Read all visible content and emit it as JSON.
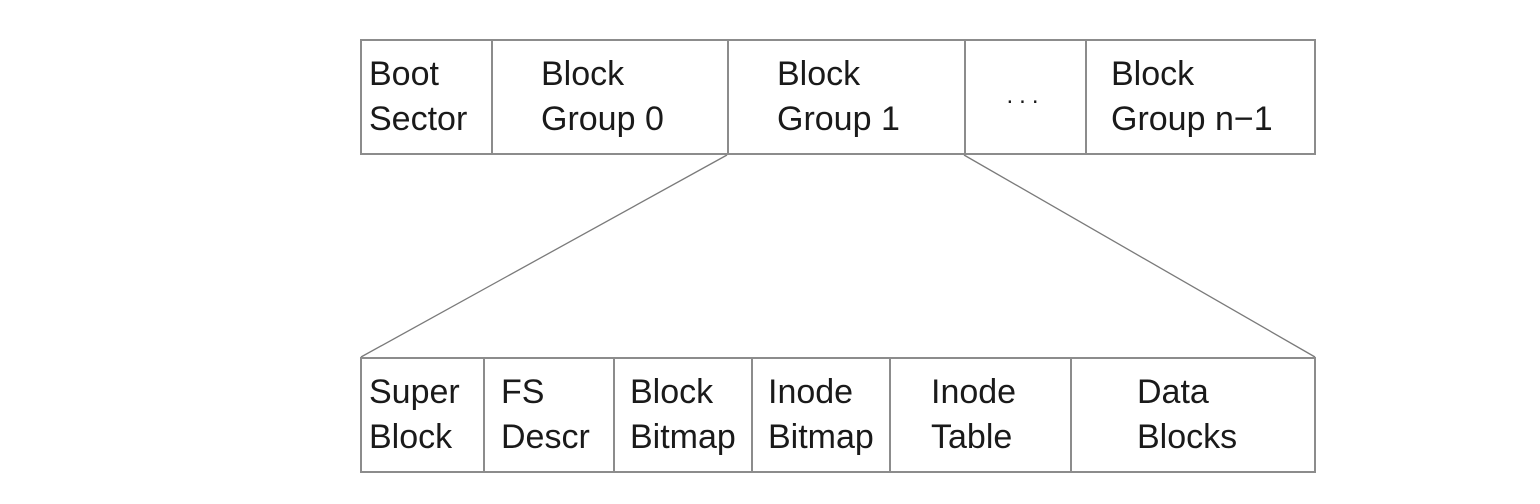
{
  "partition": {
    "cells": [
      {
        "id": "boot-sector",
        "lines": [
          "Boot",
          "Sector"
        ]
      },
      {
        "id": "block-group-0",
        "lines": [
          "Block",
          "Group 0"
        ]
      },
      {
        "id": "block-group-1",
        "lines": [
          "Block",
          "Group 1"
        ]
      },
      {
        "id": "ellipsis",
        "lines": [
          "..."
        ]
      },
      {
        "id": "block-group-n-1",
        "lines": [
          "Block",
          "Group n−1"
        ]
      }
    ]
  },
  "block_group": {
    "cells": [
      {
        "id": "super-block",
        "lines": [
          "Super",
          "Block"
        ]
      },
      {
        "id": "fs-descr",
        "lines": [
          "FS",
          "Descr"
        ]
      },
      {
        "id": "block-bitmap",
        "lines": [
          "Block",
          "Bitmap"
        ]
      },
      {
        "id": "inode-bitmap",
        "lines": [
          "Inode",
          "Bitmap"
        ]
      },
      {
        "id": "inode-table",
        "lines": [
          "Inode",
          "Table"
        ]
      },
      {
        "id": "data-blocks",
        "lines": [
          "Data",
          "Blocks"
        ]
      }
    ]
  }
}
